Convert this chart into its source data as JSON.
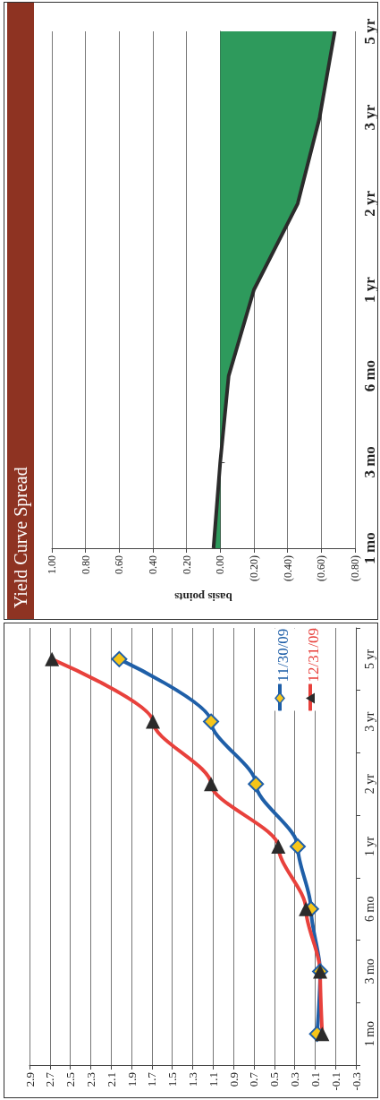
{
  "chart_data": [
    {
      "type": "line",
      "orientation": "horizontal",
      "categories": [
        "5 yr",
        "3 yr",
        "2 yr",
        "1 yr",
        "6 mo",
        "3 mo",
        "1 mo"
      ],
      "series": [
        {
          "name": "11/30/09",
          "color": "#1f5fa8",
          "marker": "diamond",
          "values": [
            2.02,
            1.12,
            0.68,
            0.27,
            0.14,
            0.05,
            0.08
          ]
        },
        {
          "name": "12/31/09",
          "color": "#e8413c",
          "marker": "triangle",
          "values": [
            2.68,
            1.69,
            1.12,
            0.46,
            0.19,
            0.05,
            0.03
          ]
        }
      ],
      "xlim": [
        2.9,
        -0.3
      ],
      "xticks": [
        2.9,
        2.7,
        2.5,
        2.3,
        2.1,
        1.9,
        1.7,
        1.5,
        1.3,
        1.1,
        0.9,
        0.7,
        0.5,
        0.3,
        0.1,
        -0.1,
        -0.3
      ],
      "grid": "x",
      "legend": "top right"
    },
    {
      "type": "area",
      "orientation": "horizontal",
      "title": "Yield Curve Spread",
      "xlabel": "basis points",
      "categories": [
        "5 yr",
        "3 yr",
        "2 yr",
        "1 yr",
        "6 mo",
        "3 mo",
        "1 mo"
      ],
      "series": [
        {
          "color": "#2e9a5c",
          "values": [
            -0.68,
            -0.59,
            -0.46,
            -0.2,
            -0.05,
            0,
            0.04
          ]
        }
      ],
      "xlim": [
        1.0,
        -0.8
      ],
      "xticks": [
        {
          "value": 1.0,
          "label": "1.00"
        },
        {
          "value": 0.8,
          "label": "0.80"
        },
        {
          "value": 0.6,
          "label": "0.60"
        },
        {
          "value": 0.4,
          "label": "0.40"
        },
        {
          "value": 0.2,
          "label": "0.20"
        },
        {
          "value": 0,
          "label": "0.00"
        },
        {
          "value": -0.2,
          "label": "(0.20)"
        },
        {
          "value": -0.4,
          "label": "(0.40)"
        },
        {
          "value": -0.6,
          "label": "(0.60)"
        },
        {
          "value": -0.8,
          "label": "(0.80)"
        }
      ],
      "grid": "x"
    }
  ]
}
